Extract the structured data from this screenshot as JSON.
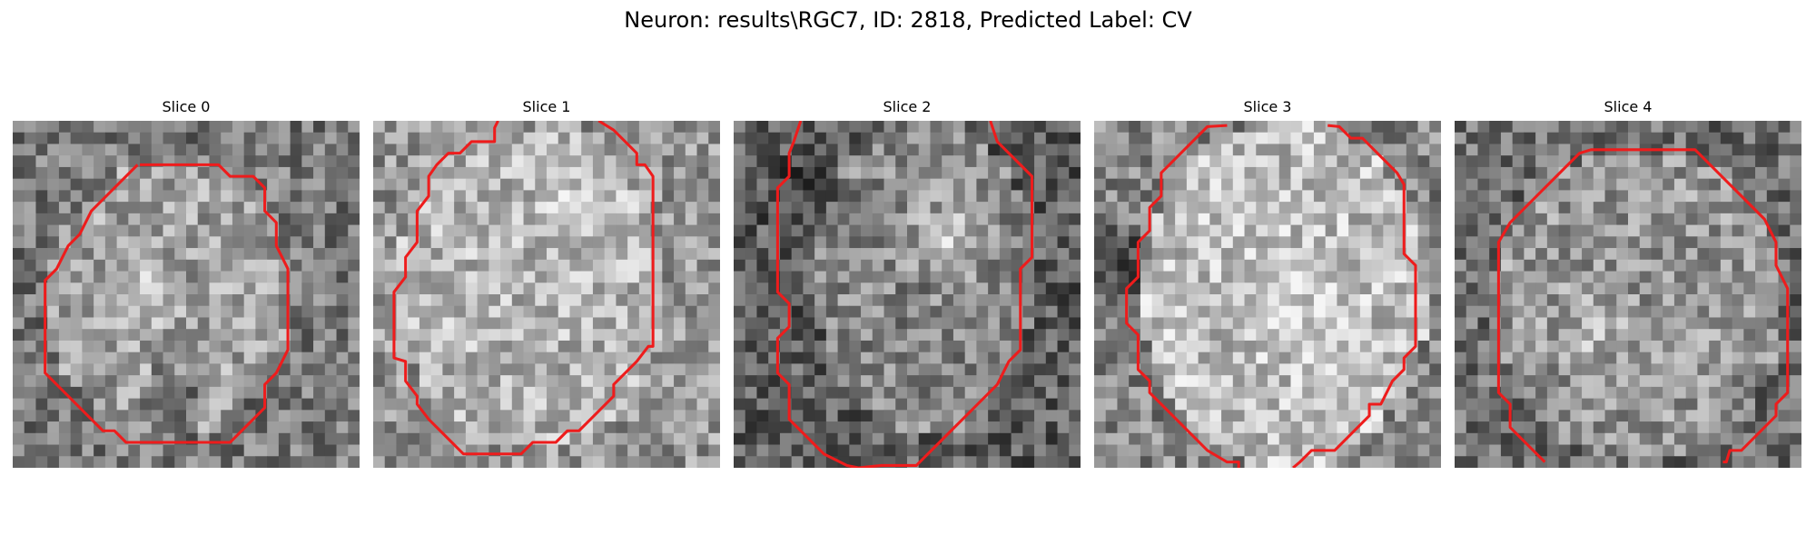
{
  "figure": {
    "title": "Neuron: results\\RGC7, ID: 2818, Predicted Label: CV"
  },
  "contour_color": "#ee1c1c",
  "panels": [
    {
      "title": "Slice 0"
    },
    {
      "title": "Slice 1"
    },
    {
      "title": "Slice 2"
    },
    {
      "title": "Slice 3"
    },
    {
      "title": "Slice 4"
    }
  ]
}
